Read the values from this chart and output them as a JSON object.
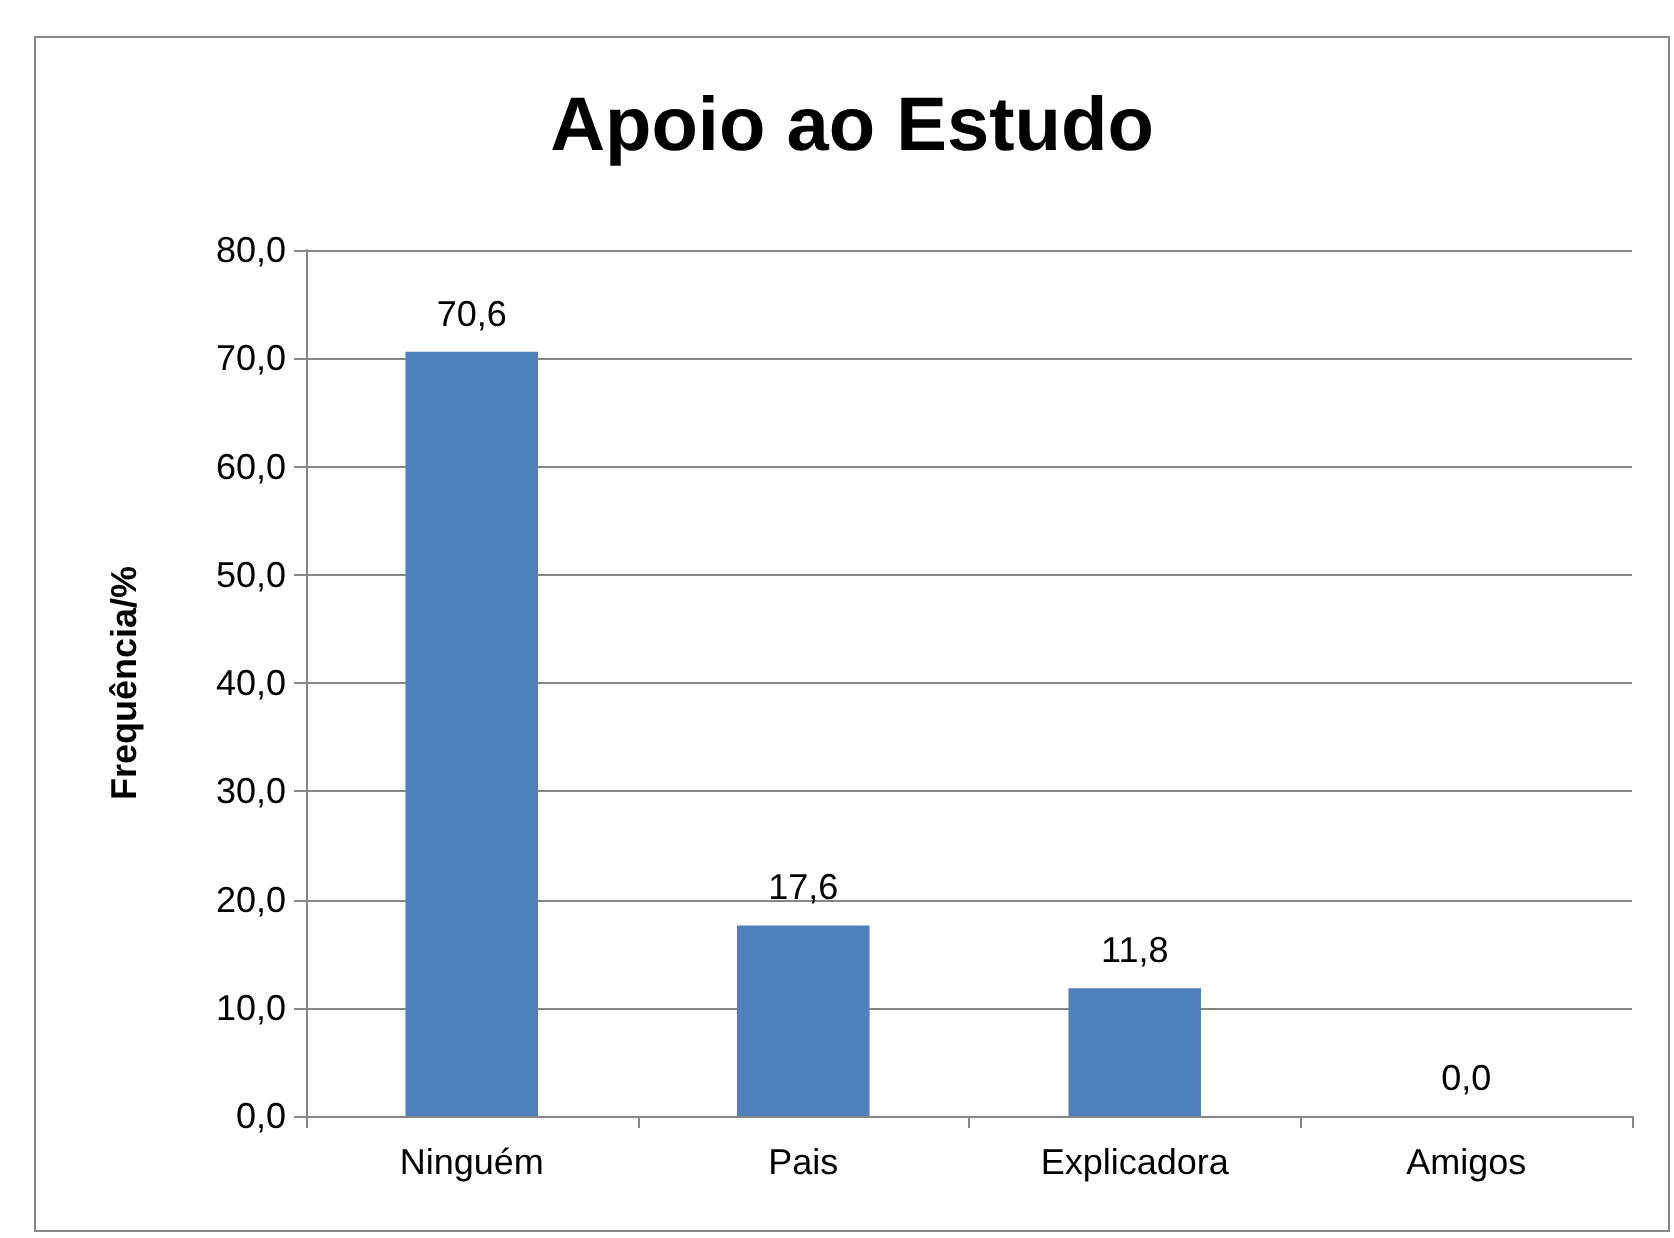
{
  "chart_data": {
    "type": "bar",
    "title": "Apoio ao Estudo",
    "ylabel": "Frequência/%",
    "categories": [
      "Ninguém",
      "Pais",
      "Explicadora",
      "Amigos"
    ],
    "values": [
      70.6,
      17.6,
      11.8,
      0.0
    ],
    "color": "#4f81bd",
    "value_labels": [
      "70,6",
      "17,6",
      "11,8",
      "0,0"
    ],
    "ylim": [
      0,
      80
    ],
    "yticks": [
      {
        "value": 0,
        "label": "0,0"
      },
      {
        "value": 10,
        "label": "10,0"
      },
      {
        "value": 20,
        "label": "20,0"
      },
      {
        "value": 30,
        "label": "30,0"
      },
      {
        "value": 40,
        "label": "40,0"
      },
      {
        "value": 50,
        "label": "50,0"
      },
      {
        "value": 60,
        "label": "60,0"
      },
      {
        "value": 70,
        "label": "70,0"
      },
      {
        "value": 80,
        "label": "80,0"
      }
    ],
    "grid": "y"
  }
}
